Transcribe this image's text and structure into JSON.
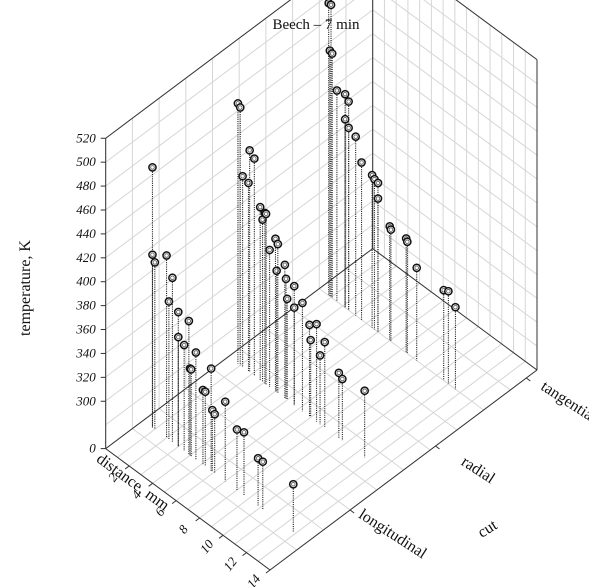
{
  "chart_data": {
    "type": "scatter",
    "title": "Beech – 7 min",
    "xlabel": "distance, mm",
    "ylabel": "cut",
    "zlabel": "temperature, K",
    "x_ticks": [
      "2",
      "4",
      "6",
      "8",
      "10",
      "12",
      "14"
    ],
    "y_ticks": [
      "longitudinal",
      "radial",
      "tangential"
    ],
    "z_ticks": [
      "0",
      "300",
      "320",
      "340",
      "360",
      "380",
      "400",
      "420",
      "440",
      "460",
      "480",
      "500",
      "520"
    ],
    "xlim": [
      0,
      14
    ],
    "zlim": [
      280,
      520
    ],
    "grid": true,
    "series": [
      {
        "cut": "longitudinal",
        "points": [
          {
            "x": 0.8,
            "z": 478
          },
          {
            "x": 0.8,
            "z": 405
          },
          {
            "x": 1.0,
            "z": 400
          },
          {
            "x": 2.0,
            "z": 413
          },
          {
            "x": 2.2,
            "z": 376
          },
          {
            "x": 2.5,
            "z": 398
          },
          {
            "x": 3.0,
            "z": 373
          },
          {
            "x": 3.0,
            "z": 352
          },
          {
            "x": 3.5,
            "z": 349
          },
          {
            "x": 3.9,
            "z": 372
          },
          {
            "x": 4.0,
            "z": 333
          },
          {
            "x": 4.1,
            "z": 333
          },
          {
            "x": 4.5,
            "z": 350
          },
          {
            "x": 5.1,
            "z": 323
          },
          {
            "x": 5.3,
            "z": 323
          },
          {
            "x": 5.8,
            "z": 346
          },
          {
            "x": 5.9,
            "z": 312
          },
          {
            "x": 6.1,
            "z": 310
          },
          {
            "x": 7.0,
            "z": 327
          },
          {
            "x": 8.0,
            "z": 311
          },
          {
            "x": 8.6,
            "z": 313
          },
          {
            "x": 9.8,
            "z": 300
          },
          {
            "x": 10.2,
            "z": 300
          },
          {
            "x": 12.8,
            "z": 300
          }
        ]
      },
      {
        "cut": "radial",
        "points": [
          {
            "x": 0.8,
            "z": 478
          },
          {
            "x": 1.0,
            "z": 476
          },
          {
            "x": 1.2,
            "z": 420
          },
          {
            "x": 1.7,
            "z": 418
          },
          {
            "x": 1.8,
            "z": 446
          },
          {
            "x": 2.2,
            "z": 442
          },
          {
            "x": 2.7,
            "z": 405
          },
          {
            "x": 2.9,
            "z": 396
          },
          {
            "x": 3.1,
            "z": 403
          },
          {
            "x": 3.2,
            "z": 403
          },
          {
            "x": 3.5,
            "z": 375
          },
          {
            "x": 4.0,
            "z": 388
          },
          {
            "x": 4.1,
            "z": 362
          },
          {
            "x": 4.2,
            "z": 385
          },
          {
            "x": 4.8,
            "z": 372
          },
          {
            "x": 4.9,
            "z": 361
          },
          {
            "x": 5.0,
            "z": 345
          },
          {
            "x": 5.6,
            "z": 360
          },
          {
            "x": 5.6,
            "z": 342
          },
          {
            "x": 6.3,
            "z": 351
          },
          {
            "x": 6.9,
            "z": 337
          },
          {
            "x": 7.0,
            "z": 325
          },
          {
            "x": 7.5,
            "z": 342
          },
          {
            "x": 7.8,
            "z": 318
          },
          {
            "x": 8.2,
            "z": 332
          },
          {
            "x": 9.4,
            "z": 315
          },
          {
            "x": 9.7,
            "z": 312
          },
          {
            "x": 11.6,
            "z": 316
          }
        ]
      },
      {
        "cut": "tangential",
        "points": [
          {
            "x": 0.8,
            "z": 505
          },
          {
            "x": 1.0,
            "z": 505
          },
          {
            "x": 0.9,
            "z": 466
          },
          {
            "x": 1.1,
            "z": 465
          },
          {
            "x": 1.5,
            "z": 437
          },
          {
            "x": 2.2,
            "z": 439
          },
          {
            "x": 2.5,
            "z": 435
          },
          {
            "x": 2.2,
            "z": 418
          },
          {
            "x": 2.5,
            "z": 413
          },
          {
            "x": 3.1,
            "z": 410
          },
          {
            "x": 3.6,
            "z": 392
          },
          {
            "x": 4.5,
            "z": 388
          },
          {
            "x": 4.7,
            "z": 386
          },
          {
            "x": 5.0,
            "z": 385
          },
          {
            "x": 5.0,
            "z": 372
          },
          {
            "x": 6.0,
            "z": 356
          },
          {
            "x": 6.1,
            "z": 354
          },
          {
            "x": 7.4,
            "z": 356
          },
          {
            "x": 7.5,
            "z": 354
          },
          {
            "x": 8.3,
            "z": 338
          },
          {
            "x": 10.6,
            "z": 336
          },
          {
            "x": 11.0,
            "z": 338
          },
          {
            "x": 11.6,
            "z": 329
          }
        ]
      }
    ]
  }
}
